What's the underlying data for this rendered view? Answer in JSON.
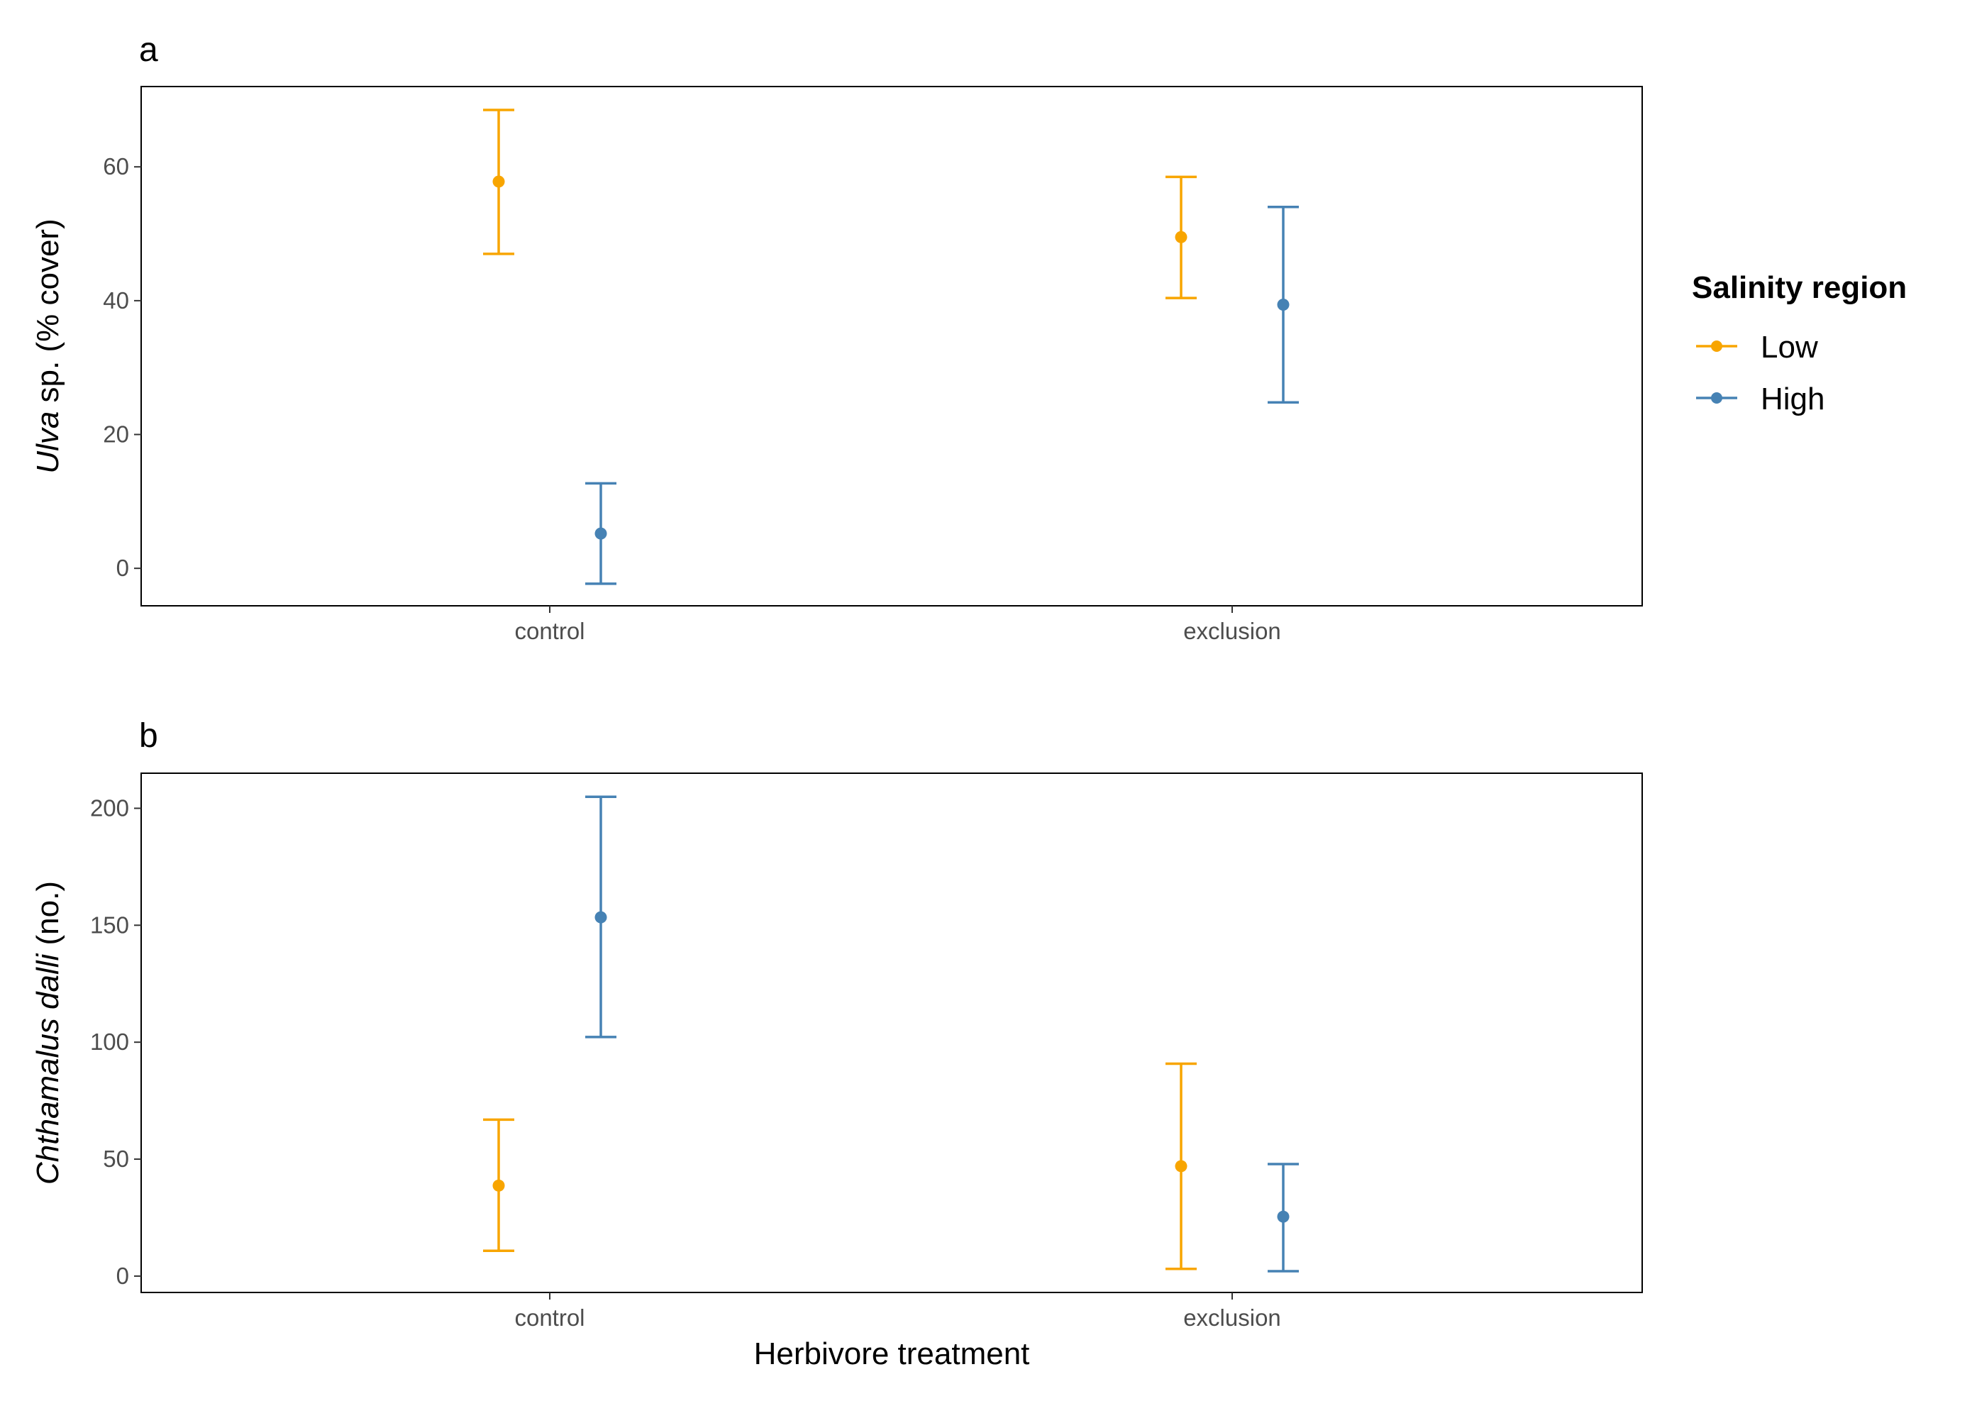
{
  "chart_data": [
    {
      "type": "scatter",
      "panel_tag": "a",
      "categories": [
        "control",
        "exclusion"
      ],
      "ylabel_italic": "Ulva",
      "ylabel_rest": " sp. (% cover)",
      "xlabel": "",
      "ylim": [
        -5.6,
        72
      ],
      "yticks": [
        0,
        20,
        40,
        60
      ],
      "series": [
        {
          "name": "Low",
          "values": [
            57.8,
            49.5
          ],
          "lower": [
            47.0,
            40.4
          ],
          "upper": [
            68.5,
            58.5
          ]
        },
        {
          "name": "High",
          "values": [
            5.2,
            39.4
          ],
          "lower": [
            -2.3,
            24.8
          ],
          "upper": [
            12.7,
            54.0
          ]
        }
      ]
    },
    {
      "type": "scatter",
      "panel_tag": "b",
      "categories": [
        "control",
        "exclusion"
      ],
      "ylabel_italic": "Chthamalus dalli",
      "ylabel_rest": " (no.)",
      "xlabel": "Herbivore treatment",
      "ylim": [
        -7,
        215
      ],
      "yticks": [
        0,
        50,
        100,
        150,
        200
      ],
      "series": [
        {
          "name": "Low",
          "values": [
            38.7,
            47.0
          ],
          "lower": [
            10.8,
            3.1
          ],
          "upper": [
            66.9,
            90.8
          ]
        },
        {
          "name": "High",
          "values": [
            153.4,
            25.4
          ],
          "lower": [
            102.2,
            2.1
          ],
          "upper": [
            204.9,
            47.9
          ]
        }
      ]
    }
  ],
  "legend": {
    "title": "Salinity region",
    "items": [
      {
        "label": "Low",
        "color": "#F8A500"
      },
      {
        "label": "High",
        "color": "#4682B4"
      }
    ]
  },
  "colors": {
    "Low": "#F8A500",
    "High": "#4682B4"
  }
}
